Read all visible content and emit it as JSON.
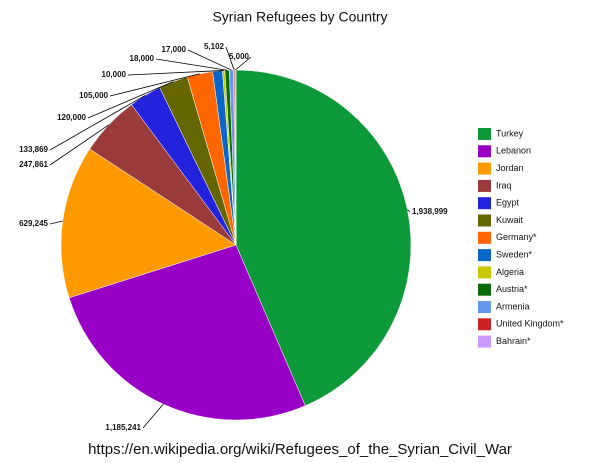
{
  "chart_data": {
    "type": "pie",
    "title": "Syrian Refugees by Country",
    "categories": [
      "Turkey",
      "Lebanon",
      "Jordan",
      "Iraq",
      "Egypt",
      "Kuwait",
      "Germany*",
      "Sweden*",
      "Algeria",
      "Austria*",
      "Armenia",
      "United Kingdom*",
      "Bahrain*"
    ],
    "values": [
      1938999,
      1185241,
      629245,
      247861,
      133869,
      120000,
      105000,
      40000,
      10000,
      18000,
      17000,
      5102,
      5000
    ],
    "value_labels": [
      "1,938,999",
      "1,185,241",
      "629,245",
      "247,861",
      "133,869",
      "120,000",
      "105,000",
      null,
      "10,000",
      "18,000",
      "17,000",
      "5,102",
      "5,000"
    ],
    "colors": [
      "#0c9a38",
      "#9900c6",
      "#ff9900",
      "#9b3a3a",
      "#2323dd",
      "#666600",
      "#ff6600",
      "#0a66c8",
      "#c8c800",
      "#0b6b0b",
      "#6699ee",
      "#cc2424",
      "#cc99ff"
    ],
    "legend": "right",
    "source": "https://en.wikipedia.org/wiki/Refugees_of_the_Syrian_Civil_War"
  }
}
